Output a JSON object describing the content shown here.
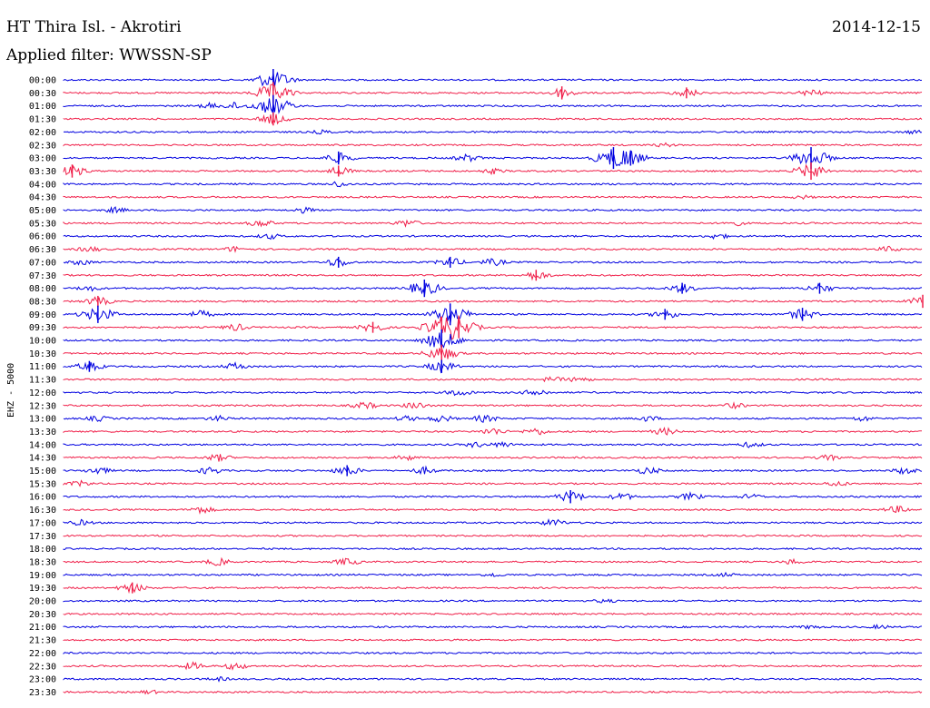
{
  "header": {
    "station": "HT Thira Isl. - Akrotiri",
    "date": "2014-12-15",
    "filter": "Applied filter: WWSSN-SP"
  },
  "chart_data": {
    "type": "line",
    "title": "HT Thira Isl. - Akrotiri",
    "channel_label": "EHZ - 5000",
    "colors": [
      "#0000e0",
      "#f0204a"
    ],
    "rows": [
      {
        "time": "00:00",
        "events": [
          {
            "t": 0.244,
            "a": 1.0
          }
        ]
      },
      {
        "time": "00:30",
        "events": [
          {
            "t": 0.244,
            "a": 1.0
          },
          {
            "t": 0.58,
            "a": 0.6
          },
          {
            "t": 0.725,
            "a": 0.5
          },
          {
            "t": 0.87,
            "a": 0.4
          }
        ]
      },
      {
        "time": "01:00",
        "events": [
          {
            "t": 0.244,
            "a": 1.0
          },
          {
            "t": 0.17,
            "a": 0.3
          },
          {
            "t": 0.2,
            "a": 0.4
          }
        ]
      },
      {
        "time": "01:30",
        "events": [
          {
            "t": 0.244,
            "a": 0.6
          }
        ]
      },
      {
        "time": "02:00",
        "events": [
          {
            "t": 0.3,
            "a": 0.2
          },
          {
            "t": 0.99,
            "a": 0.2
          }
        ]
      },
      {
        "time": "02:30",
        "events": [
          {
            "t": 0.7,
            "a": 0.2
          }
        ]
      },
      {
        "time": "03:00",
        "events": [
          {
            "t": 0.32,
            "a": 0.6
          },
          {
            "t": 0.47,
            "a": 0.4
          },
          {
            "t": 0.64,
            "a": 1.0
          },
          {
            "t": 0.66,
            "a": 0.7
          },
          {
            "t": 0.87,
            "a": 1.0
          }
        ]
      },
      {
        "time": "03:30",
        "events": [
          {
            "t": 0.01,
            "a": 0.6
          },
          {
            "t": 0.32,
            "a": 0.5
          },
          {
            "t": 0.5,
            "a": 0.3
          },
          {
            "t": 0.87,
            "a": 0.8
          }
        ]
      },
      {
        "time": "04:00",
        "events": [
          {
            "t": 0.32,
            "a": 0.3
          }
        ]
      },
      {
        "time": "04:30",
        "events": [
          {
            "t": 0.86,
            "a": 0.2
          }
        ]
      },
      {
        "time": "05:00",
        "events": [
          {
            "t": 0.06,
            "a": 0.3
          },
          {
            "t": 0.28,
            "a": 0.3
          }
        ]
      },
      {
        "time": "05:30",
        "events": [
          {
            "t": 0.23,
            "a": 0.4
          },
          {
            "t": 0.4,
            "a": 0.4
          },
          {
            "t": 0.78,
            "a": 0.3
          }
        ]
      },
      {
        "time": "06:00",
        "events": [
          {
            "t": 0.24,
            "a": 0.3
          },
          {
            "t": 0.76,
            "a": 0.3
          }
        ]
      },
      {
        "time": "06:30",
        "events": [
          {
            "t": 0.03,
            "a": 0.3
          },
          {
            "t": 0.2,
            "a": 0.3
          },
          {
            "t": 0.96,
            "a": 0.3
          }
        ]
      },
      {
        "time": "07:00",
        "events": [
          {
            "t": 0.02,
            "a": 0.3
          },
          {
            "t": 0.32,
            "a": 0.5
          },
          {
            "t": 0.45,
            "a": 0.5
          },
          {
            "t": 0.5,
            "a": 0.4
          }
        ]
      },
      {
        "time": "07:30",
        "events": [
          {
            "t": 0.55,
            "a": 0.5
          }
        ]
      },
      {
        "time": "08:00",
        "events": [
          {
            "t": 0.03,
            "a": 0.3
          },
          {
            "t": 0.42,
            "a": 0.8
          },
          {
            "t": 0.72,
            "a": 0.5
          },
          {
            "t": 0.88,
            "a": 0.5
          }
        ]
      },
      {
        "time": "08:30",
        "events": [
          {
            "t": 0.04,
            "a": 0.5
          },
          {
            "t": 1.0,
            "a": 0.6
          }
        ]
      },
      {
        "time": "09:00",
        "events": [
          {
            "t": 0.04,
            "a": 0.8
          },
          {
            "t": 0.16,
            "a": 0.4
          },
          {
            "t": 0.45,
            "a": 1.0
          },
          {
            "t": 0.7,
            "a": 0.5
          },
          {
            "t": 0.86,
            "a": 0.6
          }
        ]
      },
      {
        "time": "09:30",
        "events": [
          {
            "t": 0.2,
            "a": 0.4
          },
          {
            "t": 0.36,
            "a": 0.5
          },
          {
            "t": 0.44,
            "a": 1.0
          },
          {
            "t": 0.46,
            "a": 1.0
          }
        ]
      },
      {
        "time": "10:00",
        "events": [
          {
            "t": 0.44,
            "a": 1.0
          }
        ]
      },
      {
        "time": "10:30",
        "events": [
          {
            "t": 0.44,
            "a": 0.8
          }
        ]
      },
      {
        "time": "11:00",
        "events": [
          {
            "t": 0.03,
            "a": 0.5
          },
          {
            "t": 0.2,
            "a": 0.4
          },
          {
            "t": 0.44,
            "a": 0.6
          }
        ]
      },
      {
        "time": "11:30",
        "events": [
          {
            "t": 0.57,
            "a": 0.3
          },
          {
            "t": 0.6,
            "a": 0.3
          }
        ]
      },
      {
        "time": "12:00",
        "events": [
          {
            "t": 0.46,
            "a": 0.4
          },
          {
            "t": 0.55,
            "a": 0.4
          }
        ]
      },
      {
        "time": "12:30",
        "events": [
          {
            "t": 0.35,
            "a": 0.4
          },
          {
            "t": 0.41,
            "a": 0.4
          },
          {
            "t": 0.78,
            "a": 0.3
          }
        ]
      },
      {
        "time": "13:00",
        "events": [
          {
            "t": 0.04,
            "a": 0.3
          },
          {
            "t": 0.18,
            "a": 0.3
          },
          {
            "t": 0.4,
            "a": 0.3
          },
          {
            "t": 0.44,
            "a": 0.4
          },
          {
            "t": 0.49,
            "a": 0.4
          },
          {
            "t": 0.68,
            "a": 0.3
          },
          {
            "t": 0.93,
            "a": 0.3
          }
        ]
      },
      {
        "time": "13:30",
        "events": [
          {
            "t": 0.5,
            "a": 0.4
          },
          {
            "t": 0.55,
            "a": 0.4
          },
          {
            "t": 0.7,
            "a": 0.4
          }
        ]
      },
      {
        "time": "14:00",
        "events": [
          {
            "t": 0.48,
            "a": 0.3
          },
          {
            "t": 0.51,
            "a": 0.3
          },
          {
            "t": 0.8,
            "a": 0.3
          }
        ]
      },
      {
        "time": "14:30",
        "events": [
          {
            "t": 0.18,
            "a": 0.4
          },
          {
            "t": 0.4,
            "a": 0.3
          },
          {
            "t": 0.89,
            "a": 0.3
          }
        ]
      },
      {
        "time": "15:00",
        "events": [
          {
            "t": 0.04,
            "a": 0.4
          },
          {
            "t": 0.17,
            "a": 0.4
          },
          {
            "t": 0.33,
            "a": 0.5
          },
          {
            "t": 0.42,
            "a": 0.4
          },
          {
            "t": 0.68,
            "a": 0.4
          },
          {
            "t": 0.98,
            "a": 0.4
          }
        ]
      },
      {
        "time": "15:30",
        "events": [
          {
            "t": 0.02,
            "a": 0.3
          },
          {
            "t": 0.9,
            "a": 0.3
          }
        ]
      },
      {
        "time": "16:00",
        "events": [
          {
            "t": 0.59,
            "a": 0.6
          },
          {
            "t": 0.65,
            "a": 0.4
          },
          {
            "t": 0.73,
            "a": 0.4
          },
          {
            "t": 0.8,
            "a": 0.3
          }
        ]
      },
      {
        "time": "16:30",
        "events": [
          {
            "t": 0.16,
            "a": 0.4
          },
          {
            "t": 0.97,
            "a": 0.4
          }
        ]
      },
      {
        "time": "17:00",
        "events": [
          {
            "t": 0.02,
            "a": 0.3
          },
          {
            "t": 0.57,
            "a": 0.4
          }
        ]
      },
      {
        "time": "17:30",
        "events": []
      },
      {
        "time": "18:00",
        "events": []
      },
      {
        "time": "18:30",
        "events": [
          {
            "t": 0.18,
            "a": 0.4
          },
          {
            "t": 0.33,
            "a": 0.4
          },
          {
            "t": 0.85,
            "a": 0.3
          }
        ]
      },
      {
        "time": "19:00",
        "events": [
          {
            "t": 0.5,
            "a": 0.2
          },
          {
            "t": 0.77,
            "a": 0.2
          }
        ]
      },
      {
        "time": "19:30",
        "events": [
          {
            "t": 0.08,
            "a": 0.5
          }
        ]
      },
      {
        "time": "20:00",
        "events": [
          {
            "t": 0.63,
            "a": 0.2
          }
        ]
      },
      {
        "time": "20:30",
        "events": []
      },
      {
        "time": "21:00",
        "events": [
          {
            "t": 0.87,
            "a": 0.2
          },
          {
            "t": 0.95,
            "a": 0.2
          }
        ]
      },
      {
        "time": "21:30",
        "events": []
      },
      {
        "time": "22:00",
        "events": []
      },
      {
        "time": "22:30",
        "events": [
          {
            "t": 0.15,
            "a": 0.4
          },
          {
            "t": 0.2,
            "a": 0.4
          }
        ]
      },
      {
        "time": "23:00",
        "events": [
          {
            "t": 0.18,
            "a": 0.2
          }
        ]
      },
      {
        "time": "23:30",
        "events": [
          {
            "t": 0.1,
            "a": 0.2
          }
        ]
      }
    ]
  }
}
